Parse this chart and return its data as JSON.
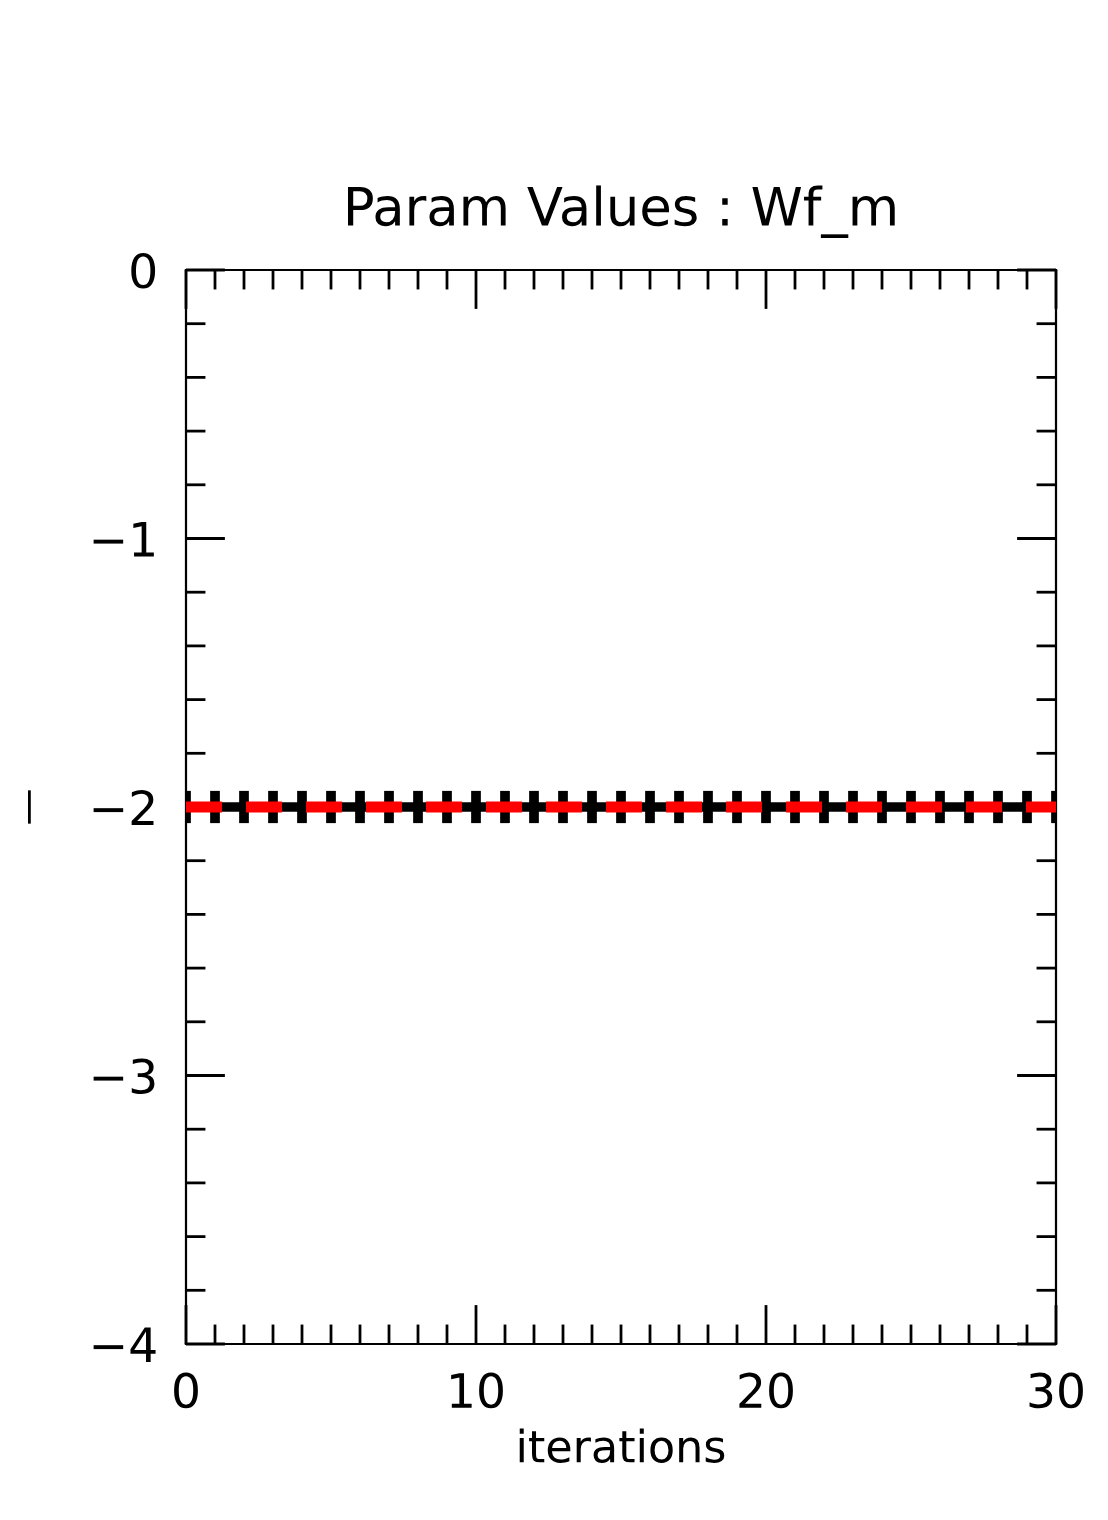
{
  "chart_data": {
    "type": "line",
    "title": "Param Values : Wf_m",
    "xlabel": "iterations",
    "ylabel": "|",
    "x": [
      0,
      1,
      2,
      3,
      4,
      5,
      6,
      7,
      8,
      9,
      10,
      11,
      12,
      13,
      14,
      15,
      16,
      17,
      18,
      19,
      20,
      21,
      22,
      23,
      24,
      25,
      26,
      27,
      28,
      29,
      30
    ],
    "series": [
      {
        "color": "#000000",
        "line_style": "solid",
        "values": [
          -2,
          -2,
          -2,
          -2,
          -2,
          -2,
          -2,
          -2,
          -2,
          -2,
          -2,
          -2,
          -2,
          -2,
          -2,
          -2,
          -2,
          -2,
          -2,
          -2,
          -2,
          -2,
          -2,
          -2,
          -2,
          -2,
          -2,
          -2,
          -2,
          -2,
          -2
        ],
        "errors": [
          0.06,
          0.06,
          0.06,
          0.06,
          0.06,
          0.06,
          0.06,
          0.06,
          0.06,
          0.06,
          0.06,
          0.06,
          0.06,
          0.06,
          0.06,
          0.06,
          0.06,
          0.06,
          0.06,
          0.06,
          0.06,
          0.06,
          0.06,
          0.06,
          0.06,
          0.06,
          0.06,
          0.06,
          0.06,
          0.06,
          0.06
        ]
      },
      {
        "color": "#ff0000",
        "line_style": "dashed",
        "values": [
          -2,
          -2,
          -2,
          -2,
          -2,
          -2,
          -2,
          -2,
          -2,
          -2,
          -2,
          -2,
          -2,
          -2,
          -2,
          -2,
          -2,
          -2,
          -2,
          -2,
          -2,
          -2,
          -2,
          -2,
          -2,
          -2,
          -2,
          -2,
          -2,
          -2,
          -2
        ]
      }
    ],
    "xlim": [
      0,
      30
    ],
    "ylim": [
      -4,
      0
    ],
    "xticks": [
      0,
      10,
      20,
      30
    ],
    "yticks": [
      -4,
      -3,
      -2,
      -1,
      0
    ],
    "grid": false,
    "legend": false,
    "marker": "none"
  }
}
